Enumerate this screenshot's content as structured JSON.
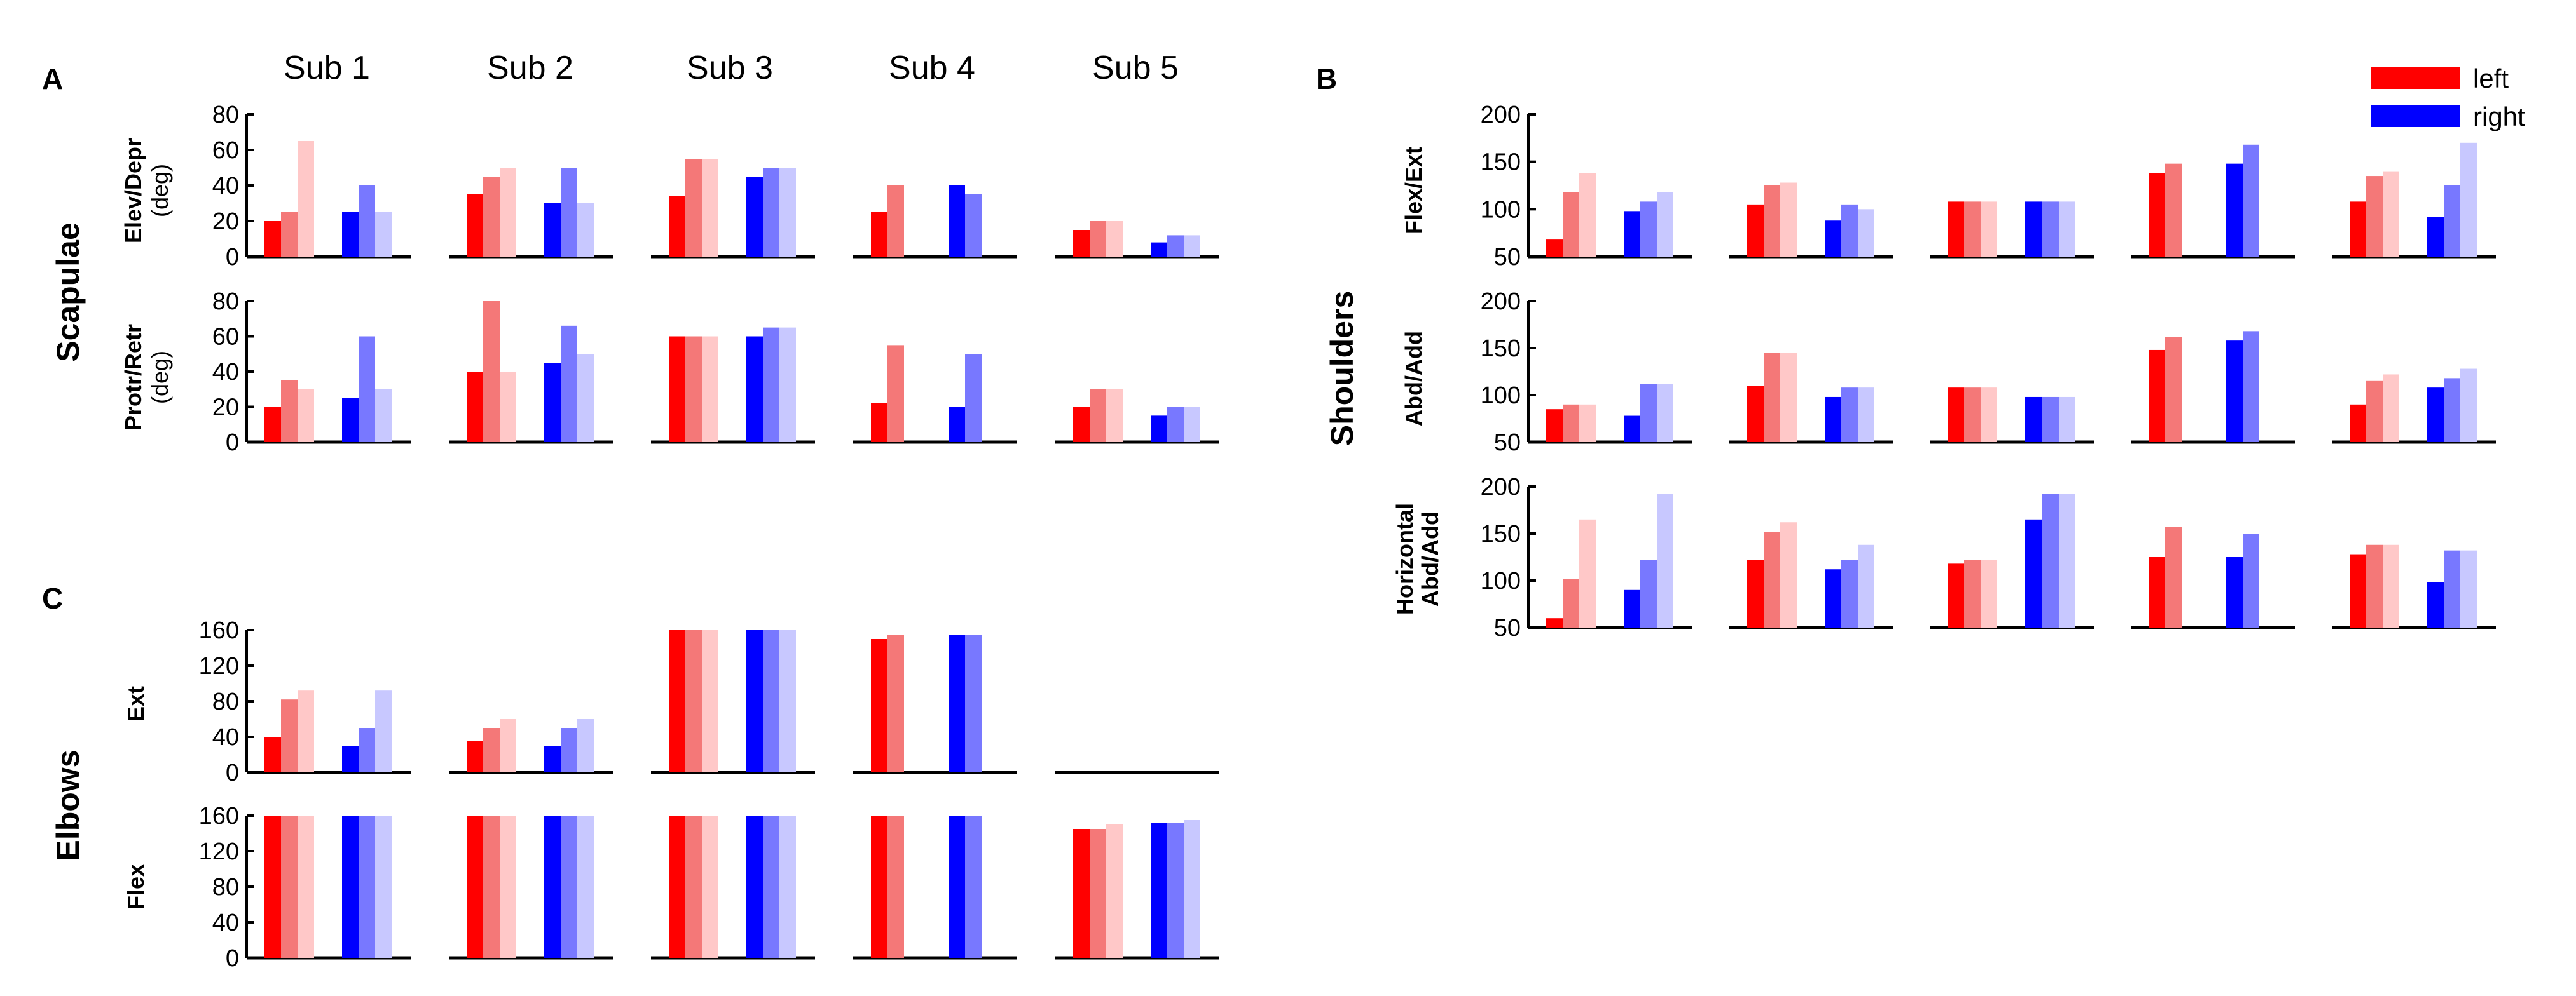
{
  "chart_data": {
    "type": "bar",
    "panels": [
      {
        "letter": "A",
        "title": "Scapulae"
      },
      {
        "letter": "B",
        "title": "Shoulders"
      },
      {
        "letter": "C",
        "title": "Elbows"
      }
    ],
    "subjects": [
      "Sub 1",
      "Sub 2",
      "Sub 3",
      "Sub 4",
      "Sub 5"
    ],
    "legend": [
      {
        "label": "left",
        "color": "#ff0000"
      },
      {
        "label": "right",
        "color": "#0000ff"
      }
    ],
    "colors": {
      "left": [
        "#ff0000",
        "#f47878",
        "#ffc8c8"
      ],
      "right": [
        "#0000ff",
        "#7878ff",
        "#c8c8ff"
      ]
    },
    "rows": [
      {
        "panel": "A",
        "label": "Elev/Depr",
        "unit": "(deg)",
        "ylim": [
          0,
          80
        ],
        "yticks": [
          "80",
          "60",
          "40",
          "20",
          "0"
        ],
        "values": [
          {
            "left": [
              20,
              25,
              65
            ],
            "right": [
              25,
              40,
              25
            ]
          },
          {
            "left": [
              35,
              45,
              50
            ],
            "right": [
              30,
              50,
              30
            ]
          },
          {
            "left": [
              34,
              55,
              55
            ],
            "right": [
              45,
              50,
              50
            ]
          },
          {
            "left": [
              25,
              40
            ],
            "right": [
              40,
              35
            ]
          },
          {
            "left": [
              15,
              20,
              20
            ],
            "right": [
              8,
              12,
              12
            ]
          }
        ]
      },
      {
        "panel": "A",
        "label": "Protr/Retr",
        "unit": "(deg)",
        "ylim": [
          0,
          80
        ],
        "yticks": [
          "80",
          "60",
          "40",
          "20",
          "0"
        ],
        "values": [
          {
            "left": [
              20,
              35,
              30
            ],
            "right": [
              25,
              60,
              30
            ]
          },
          {
            "left": [
              40,
              80,
              40
            ],
            "right": [
              45,
              66,
              50
            ]
          },
          {
            "left": [
              60,
              60,
              60
            ],
            "right": [
              60,
              65,
              65
            ]
          },
          {
            "left": [
              22,
              55
            ],
            "right": [
              20,
              50
            ]
          },
          {
            "left": [
              20,
              30,
              30
            ],
            "right": [
              15,
              20,
              20
            ]
          }
        ]
      },
      {
        "panel": "B",
        "label": "Flex/Ext",
        "unit": "",
        "ylim": [
          50,
          200
        ],
        "yticks": [
          "200",
          "150",
          "100",
          "50"
        ],
        "values": [
          {
            "left": [
              68,
              118,
              138
            ],
            "right": [
              98,
              108,
              118
            ]
          },
          {
            "left": [
              105,
              125,
              128
            ],
            "right": [
              88,
              105,
              100
            ]
          },
          {
            "left": [
              108,
              108,
              108
            ],
            "right": [
              108,
              108,
              108
            ]
          },
          {
            "left": [
              138,
              148
            ],
            "right": [
              148,
              168
            ]
          },
          {
            "left": [
              108,
              135,
              140
            ],
            "right": [
              92,
              125,
              170
            ]
          }
        ]
      },
      {
        "panel": "B",
        "label": "Abd/Add",
        "unit": "",
        "ylim": [
          50,
          200
        ],
        "yticks": [
          "200",
          "150",
          "100",
          "50"
        ],
        "values": [
          {
            "left": [
              85,
              90,
              90
            ],
            "right": [
              78,
              112,
              112
            ]
          },
          {
            "left": [
              110,
              145,
              145
            ],
            "right": [
              98,
              108,
              108
            ]
          },
          {
            "left": [
              108,
              108,
              108
            ],
            "right": [
              98,
              98,
              98
            ]
          },
          {
            "left": [
              148,
              162
            ],
            "right": [
              158,
              168
            ]
          },
          {
            "left": [
              90,
              115,
              122
            ],
            "right": [
              108,
              118,
              128
            ]
          }
        ]
      },
      {
        "panel": "B",
        "label": "Horizontal",
        "unit": "Abd/Add",
        "ylim": [
          50,
          200
        ],
        "yticks": [
          "200",
          "150",
          "100",
          "50"
        ],
        "values": [
          {
            "left": [
              60,
              102,
              165
            ],
            "right": [
              90,
              122,
              192
            ]
          },
          {
            "left": [
              122,
              152,
              162
            ],
            "right": [
              112,
              122,
              138
            ]
          },
          {
            "left": [
              118,
              122,
              122
            ],
            "right": [
              165,
              192,
              192
            ]
          },
          {
            "left": [
              125,
              157
            ],
            "right": [
              125,
              150
            ]
          },
          {
            "left": [
              128,
              138,
              138
            ],
            "right": [
              98,
              132,
              132
            ]
          }
        ]
      },
      {
        "panel": "C",
        "label": "Ext",
        "unit": "",
        "ylim": [
          0,
          160
        ],
        "yticks": [
          "160",
          "120",
          "80",
          "40",
          "0"
        ],
        "values": [
          {
            "left": [
              40,
              82,
              92
            ],
            "right": [
              30,
              50,
              92
            ]
          },
          {
            "left": [
              35,
              50,
              60
            ],
            "right": [
              30,
              50,
              60
            ]
          },
          {
            "left": [
              160,
              160,
              160
            ],
            "right": [
              160,
              160,
              160
            ]
          },
          {
            "left": [
              150,
              155
            ],
            "right": [
              155,
              155
            ]
          },
          {
            "left": [],
            "right": []
          }
        ]
      },
      {
        "panel": "C",
        "label": "Flex",
        "unit": "",
        "ylim": [
          0,
          160
        ],
        "yticks": [
          "160",
          "120",
          "80",
          "40",
          "0"
        ],
        "values": [
          {
            "left": [
              160,
              160,
              160
            ],
            "right": [
              160,
              160,
              160
            ]
          },
          {
            "left": [
              160,
              160,
              160
            ],
            "right": [
              160,
              160,
              160
            ]
          },
          {
            "left": [
              160,
              160,
              160
            ],
            "right": [
              160,
              160,
              160
            ]
          },
          {
            "left": [
              160,
              160
            ],
            "right": [
              160,
              160
            ]
          },
          {
            "left": [
              145,
              145,
              150
            ],
            "right": [
              152,
              152,
              155
            ]
          }
        ]
      }
    ]
  }
}
